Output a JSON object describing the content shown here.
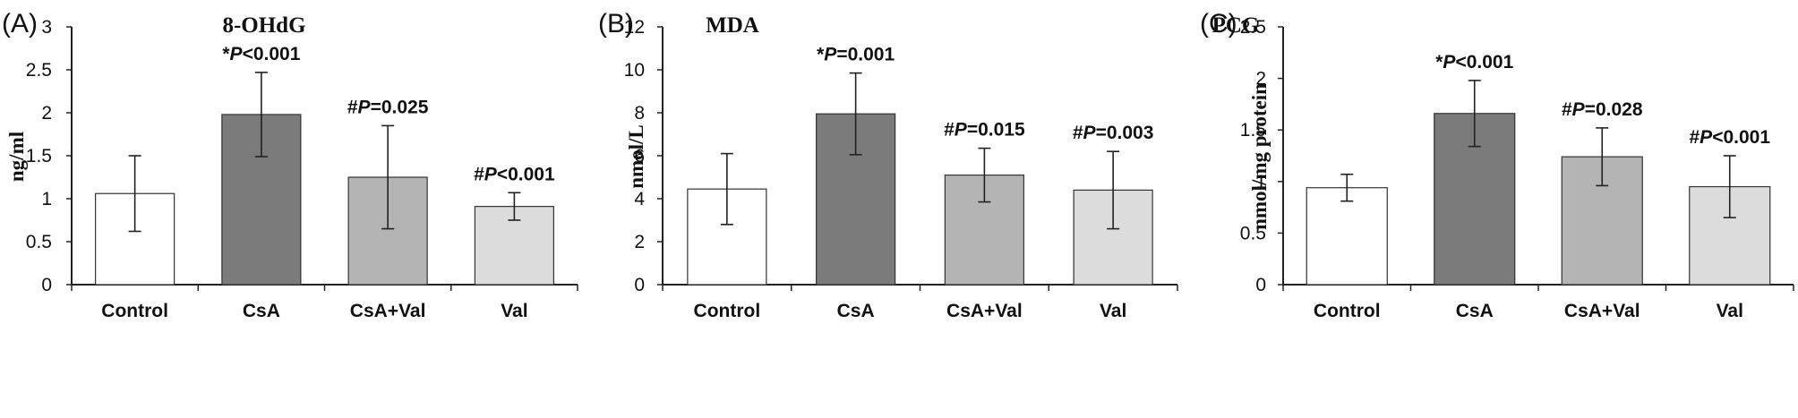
{
  "chart_data": [
    {
      "type": "bar",
      "panel_label": "(A)",
      "title": "8-OHdG",
      "xlabel": "",
      "ylabel": "ng/ml",
      "ylim": [
        0,
        3
      ],
      "yticks": [
        0,
        0.5,
        1,
        1.5,
        2,
        2.5,
        3
      ],
      "ytick_labels": [
        "0",
        "0.5",
        "1",
        "1.5",
        "2",
        "2.5",
        "3"
      ],
      "categories": [
        "Control",
        "CsA",
        "CsA+Val",
        "Val"
      ],
      "values": [
        1.06,
        1.98,
        1.25,
        0.91
      ],
      "errors": [
        0.44,
        0.49,
        0.6,
        0.16
      ],
      "colors": [
        "#ffffff",
        "#7b7b7b",
        "#b4b4b4",
        "#dcdcdc"
      ],
      "annotations": [
        {
          "index": 1,
          "mark": "*",
          "p": "P",
          "rest": "<0.001"
        },
        {
          "index": 2,
          "mark": "#",
          "p": "P",
          "rest": "=0.025"
        },
        {
          "index": 3,
          "mark": "#",
          "p": "P",
          "rest": "<0.001"
        }
      ]
    },
    {
      "type": "bar",
      "panel_label": "(B)",
      "title": "MDA",
      "xlabel": "",
      "ylabel": "nmol/L",
      "ylim": [
        0,
        12
      ],
      "yticks": [
        0,
        2,
        4,
        6,
        8,
        10,
        12
      ],
      "ytick_labels": [
        "0",
        "2",
        "4",
        "6",
        "8",
        "10",
        "12"
      ],
      "categories": [
        "Control",
        "CsA",
        "CsA+Val",
        "Val"
      ],
      "values": [
        4.45,
        7.95,
        5.1,
        4.4
      ],
      "errors": [
        1.65,
        1.9,
        1.25,
        1.8
      ],
      "colors": [
        "#ffffff",
        "#7b7b7b",
        "#b4b4b4",
        "#dcdcdc"
      ],
      "annotations": [
        {
          "index": 1,
          "mark": "*",
          "p": "P",
          "rest": "=0.001"
        },
        {
          "index": 2,
          "mark": "#",
          "p": "P",
          "rest": "=0.015"
        },
        {
          "index": 3,
          "mark": "#",
          "p": "P",
          "rest": "=0.003"
        }
      ]
    },
    {
      "type": "bar",
      "panel_label": "(C)",
      "title": "PCG",
      "xlabel": "",
      "ylabel": "nmol/mg protein",
      "ylim": [
        0,
        2.5
      ],
      "yticks": [
        0,
        0.5,
        1,
        1.5,
        2,
        2.5
      ],
      "ytick_labels": [
        "0",
        "0.5",
        "1",
        "1.5",
        "2",
        "2.5"
      ],
      "categories": [
        "Control",
        "CsA",
        "CsA+Val",
        "Val"
      ],
      "values": [
        0.94,
        1.66,
        1.24,
        0.95
      ],
      "errors": [
        0.13,
        0.32,
        0.28,
        0.3
      ],
      "colors": [
        "#ffffff",
        "#7b7b7b",
        "#b4b4b4",
        "#dcdcdc"
      ],
      "annotations": [
        {
          "index": 1,
          "mark": "*",
          "p": "P",
          "rest": "<0.001"
        },
        {
          "index": 2,
          "mark": "#",
          "p": "P",
          "rest": "=0.028"
        },
        {
          "index": 3,
          "mark": "#",
          "p": "P",
          "rest": "<0.001"
        }
      ]
    }
  ]
}
